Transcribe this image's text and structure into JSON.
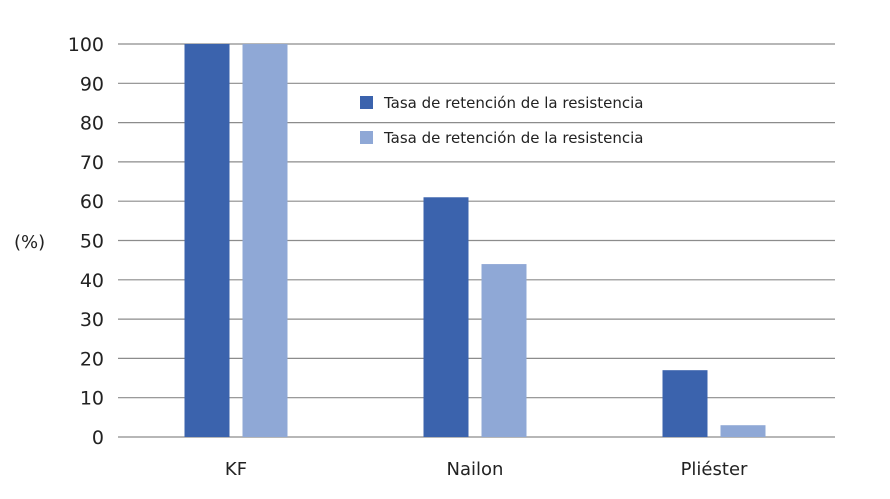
{
  "chart_data": {
    "type": "bar",
    "categories": [
      "KF",
      "Nailon",
      "Pliéster"
    ],
    "series": [
      {
        "name": "Tasa de retención de la resistencia",
        "values": [
          100,
          61,
          17
        ],
        "color": "#3b63ad"
      },
      {
        "name": "Tasa de retención de la resistencia",
        "values": [
          100,
          44,
          3
        ],
        "color": "#8fa8d6"
      }
    ],
    "ylabel": "(%)",
    "xlabel": "",
    "ylim": [
      0,
      100
    ],
    "yticks": [
      0,
      10,
      20,
      30,
      40,
      50,
      60,
      70,
      80,
      90,
      100
    ],
    "grid": true,
    "legend_position": "top-right",
    "gridline_color": "#8c8c8c"
  }
}
